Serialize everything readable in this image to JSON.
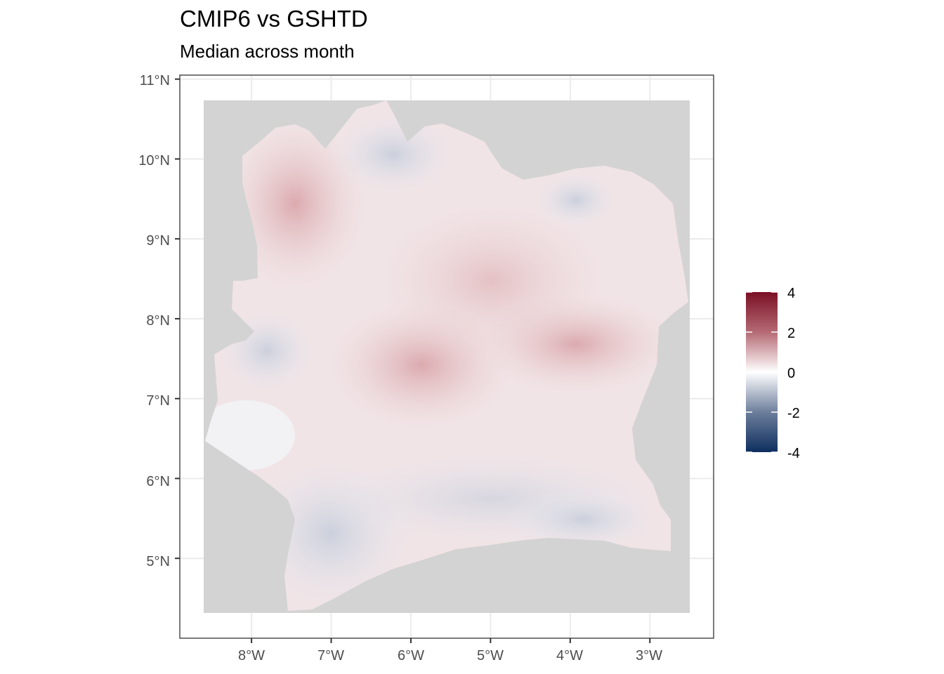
{
  "title": "CMIP6 vs GSHTD",
  "subtitle": "Median across month",
  "axes": {
    "x_ticks": [
      "8°W",
      "7°W",
      "6°W",
      "5°W",
      "4°W",
      "3°W"
    ],
    "y_ticks": [
      "11°N",
      "10°N",
      "9°N",
      "8°N",
      "7°N",
      "6°N",
      "5°N"
    ]
  },
  "legend": {
    "labels": [
      "4",
      "2",
      "0",
      "-2",
      "-4"
    ],
    "colors": {
      "high": "#7a0f24",
      "mid": "#ffffff",
      "low": "#0d2f5e"
    }
  },
  "colors": {
    "no_data": "#d3d3d3",
    "grid": "#ebebeb",
    "panel_border": "#333333"
  },
  "chart_data": {
    "type": "heatmap",
    "title": "CMIP6 vs GSHTD",
    "subtitle": "Median across month",
    "x_range_lon": [
      -8.9,
      -2.2
    ],
    "y_range_lat": [
      4.0,
      11.05
    ],
    "x_tick_values": [
      -8,
      -7,
      -6,
      -5,
      -4,
      -3
    ],
    "y_tick_values": [
      11,
      10,
      9,
      8,
      7,
      6,
      5
    ],
    "scale": {
      "min": -4,
      "max": 4,
      "breaks": [
        4,
        2,
        0,
        -2,
        -4
      ]
    },
    "grid": true,
    "legend_position": "right"
  }
}
